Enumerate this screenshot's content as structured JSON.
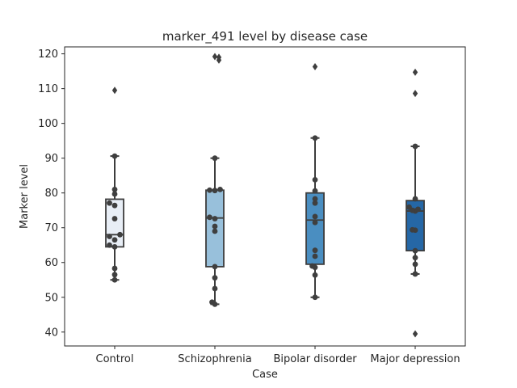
{
  "chart_data": {
    "type": "box",
    "title": "marker_491 level by disease case",
    "xlabel": "Case",
    "ylabel": "Marker level",
    "ylim": [
      36,
      122
    ],
    "yticks": [
      40,
      50,
      60,
      70,
      80,
      90,
      100,
      110,
      120
    ],
    "grid": false,
    "legend": "none",
    "categories": [
      "Control",
      "Schizophrenia",
      "Bipolar disorder",
      "Major depression"
    ],
    "colors": [
      "#e8eef6",
      "#98c0db",
      "#4a8ec1",
      "#2567a6"
    ],
    "boxes": [
      {
        "q1": 64.5,
        "median": 68.0,
        "q3": 78.2,
        "whisker_low": 55.0,
        "whisker_high": 90.6
      },
      {
        "q1": 58.8,
        "median": 72.8,
        "q3": 80.8,
        "whisker_low": 48.0,
        "whisker_high": 90.0
      },
      {
        "q1": 59.5,
        "median": 72.2,
        "q3": 80.0,
        "whisker_low": 50.0,
        "whisker_high": 95.8
      },
      {
        "q1": 63.4,
        "median": 74.8,
        "q3": 77.8,
        "whisker_low": 56.7,
        "whisker_high": 93.4
      }
    ],
    "outliers": [
      [
        109.5
      ],
      [
        119.2,
        119.0,
        118.2
      ],
      [
        116.3
      ],
      [
        114.7,
        108.6,
        39.5
      ]
    ],
    "points": [
      [
        55.0,
        56.5,
        58.3,
        64.5,
        65.0,
        66.5,
        67.5,
        68.0,
        72.6,
        76.4,
        77.1,
        79.7,
        81.0,
        90.6
      ],
      [
        48.0,
        48.6,
        52.5,
        55.6,
        58.8,
        69.0,
        70.4,
        72.6,
        73.0,
        80.7,
        80.8,
        81.0,
        90.0
      ],
      [
        50.0,
        56.4,
        58.6,
        59.0,
        61.8,
        63.5,
        71.5,
        73.2,
        77.1,
        78.3,
        80.6,
        83.8,
        95.8
      ],
      [
        56.7,
        59.5,
        61.4,
        63.4,
        69.3,
        69.4,
        74.8,
        75.0,
        75.3,
        75.9,
        78.3,
        93.4
      ]
    ]
  }
}
